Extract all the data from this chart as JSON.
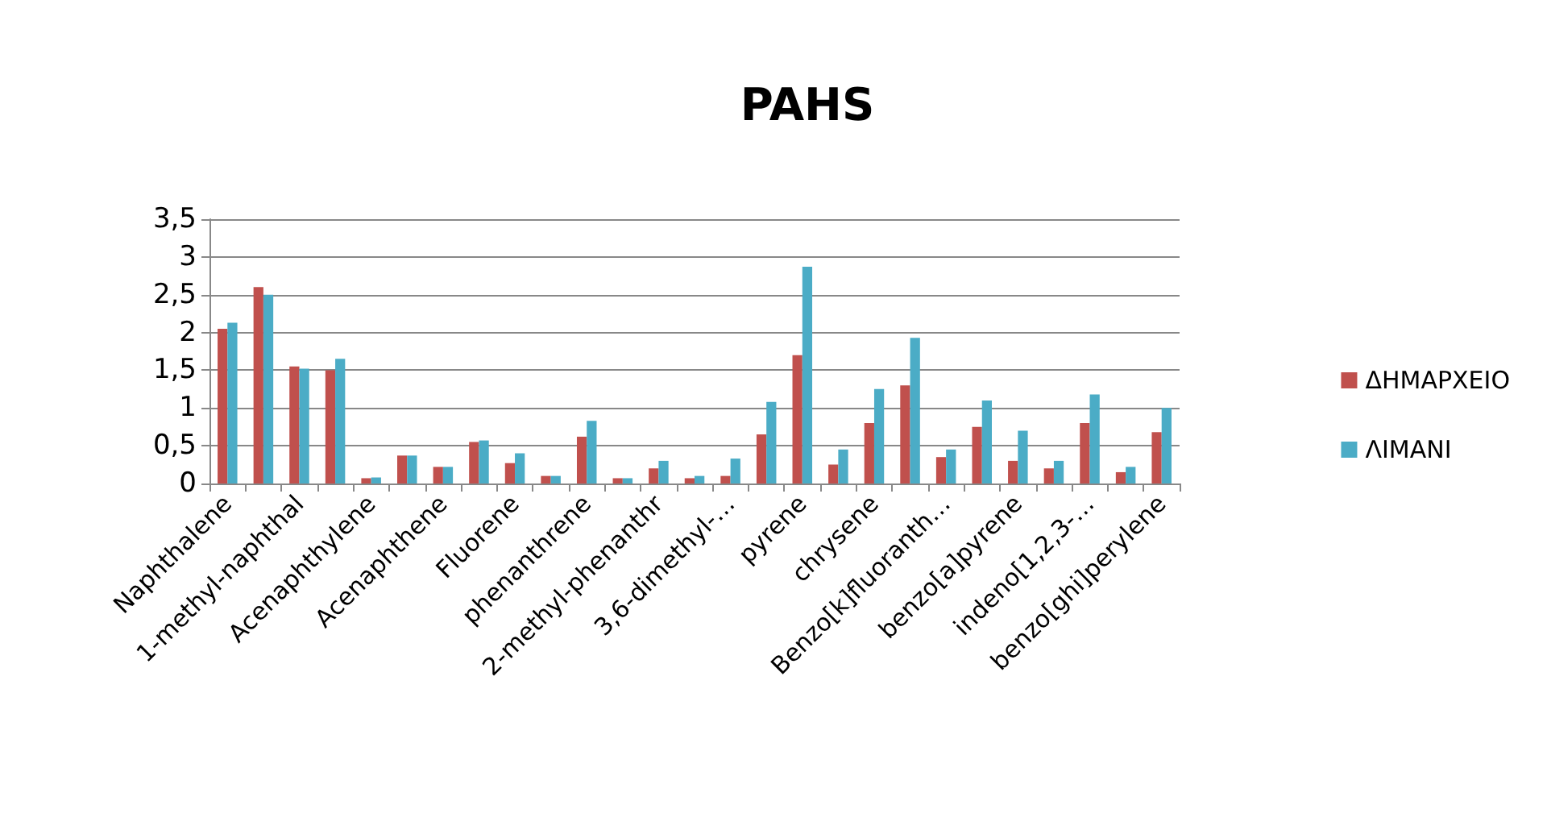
{
  "chart_data": {
    "type": "bar",
    "title": "PAHS",
    "categories": [
      "Naphthalene",
      null,
      "1-methyl-naphthal",
      null,
      "Acenaphthylene",
      null,
      "Acenaphthene",
      null,
      "Fluorene",
      null,
      "phenanthrene",
      null,
      "2-methyl-phenanthr",
      null,
      "3,6-dimethyl-…",
      null,
      "pyrene",
      null,
      "chrysene",
      null,
      "Benzo[k]fluoranth…",
      null,
      "benzo[a]pyrene",
      null,
      "indeno[1,2,3-…",
      null,
      "benzo[ghi]perylene"
    ],
    "series": [
      {
        "name": "ΔΗΜΑΡΧΕΙΟ",
        "color": "#c0504d",
        "values": [
          2.05,
          2.6,
          1.55,
          1.5,
          0.07,
          0.37,
          0.22,
          0.55,
          0.27,
          0.1,
          0.62,
          0.07,
          0.2,
          0.07,
          0.1,
          0.65,
          1.7,
          0.25,
          0.8,
          1.3,
          0.35,
          0.75,
          0.3,
          0.2,
          0.8,
          0.15,
          0.68
        ]
      },
      {
        "name": "ΛΙΜΑΝΙ",
        "color": "#4bacc6",
        "values": [
          2.13,
          2.5,
          1.52,
          1.65,
          0.08,
          0.37,
          0.22,
          0.57,
          0.4,
          0.1,
          0.83,
          0.07,
          0.3,
          0.1,
          0.33,
          1.08,
          2.87,
          0.45,
          1.25,
          1.93,
          0.45,
          1.1,
          0.7,
          0.3,
          1.18,
          0.22,
          1.0
        ]
      }
    ],
    "ylim": [
      0,
      3.5
    ],
    "yticks": [
      0,
      {
        "value": 0.5,
        "label": "0,5"
      },
      1,
      {
        "value": 1.5,
        "label": "1,5"
      },
      2,
      {
        "value": 2.5,
        "label": "2,5"
      },
      3,
      {
        "value": 3.5,
        "label": "3,5"
      }
    ],
    "grid": "y",
    "legend": "right"
  }
}
